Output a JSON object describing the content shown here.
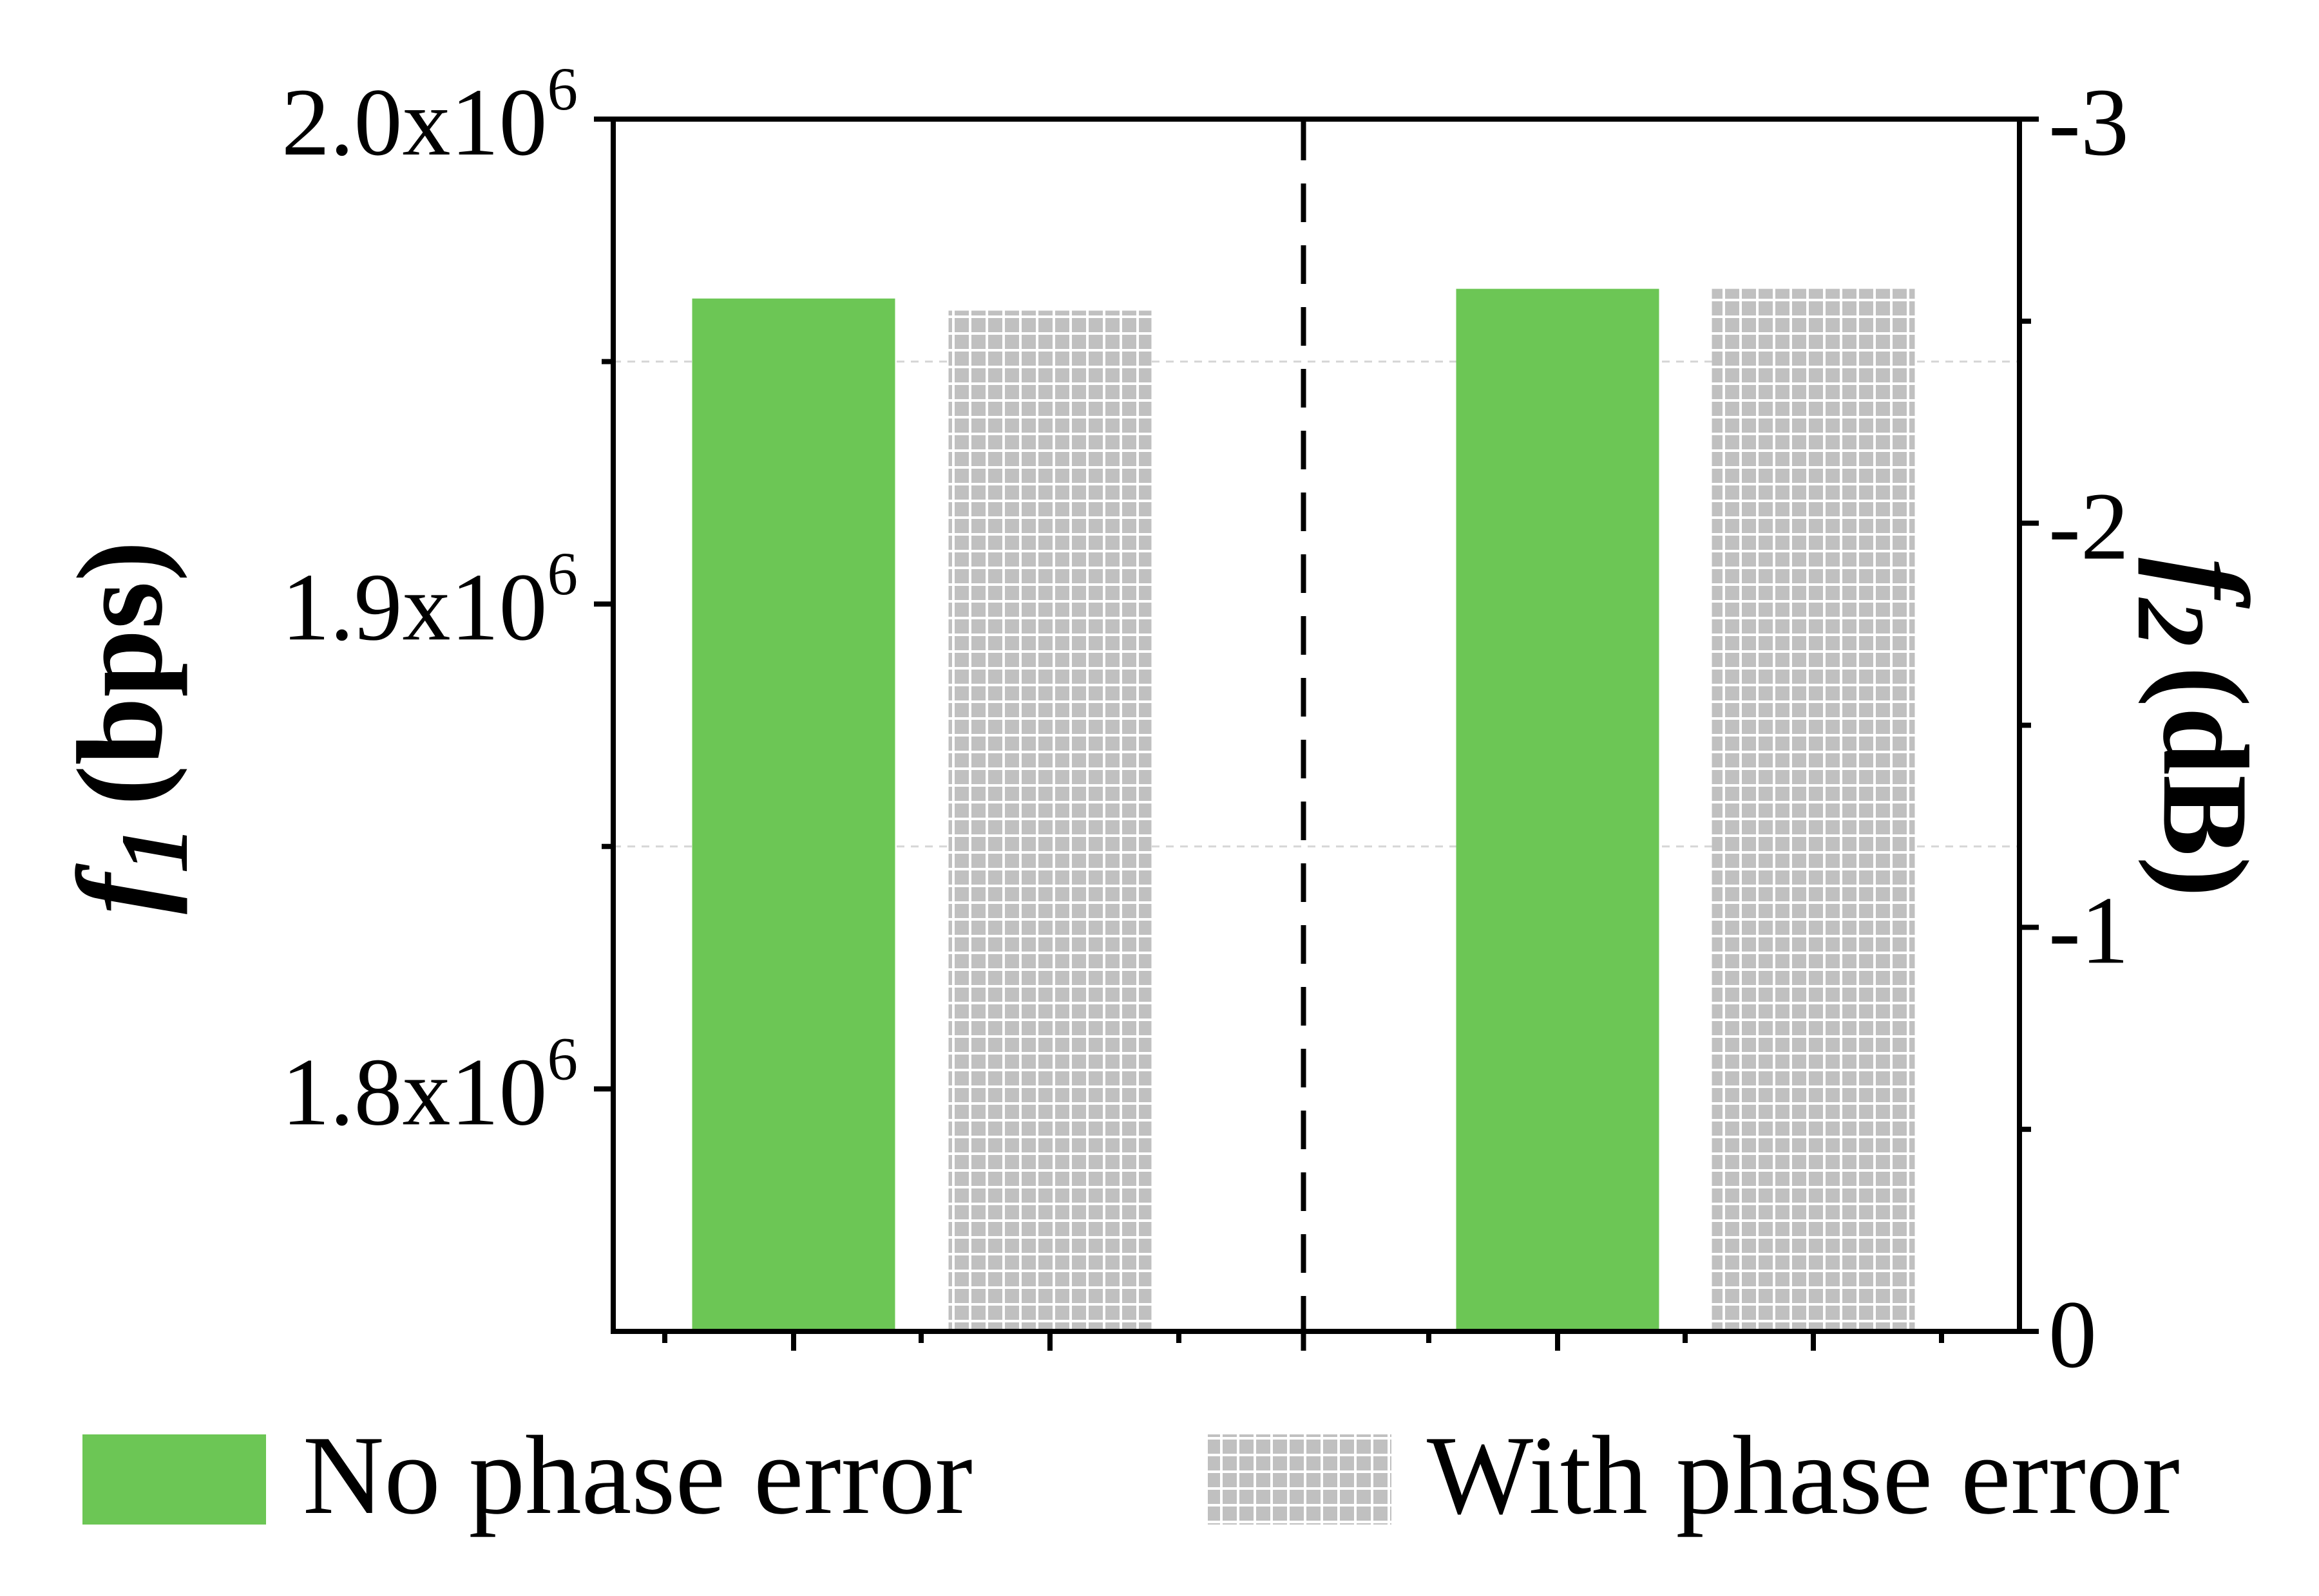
{
  "chart_data": {
    "type": "bar",
    "title": "",
    "left_axis": {
      "label_italic": "f",
      "label_sub": "1",
      "label_unit": "(bps)",
      "ylim": [
        1750000,
        2000000
      ],
      "ticks": [
        {
          "value": 1800000,
          "mantissa": "1.8x10",
          "exp": "6"
        },
        {
          "value": 1900000,
          "mantissa": "1.9x10",
          "exp": "6"
        },
        {
          "value": 2000000,
          "mantissa": "2.0x10",
          "exp": "6"
        }
      ],
      "gridlines": [
        1850000,
        1950000
      ]
    },
    "right_axis": {
      "label_italic": "f",
      "label_sub": "2",
      "label_unit": "(dB)",
      "ylim": [
        0,
        -3
      ],
      "ticks": [
        {
          "value": 0,
          "label": "0"
        },
        {
          "value": -1,
          "label": "-1"
        },
        {
          "value": -2,
          "label": "-2"
        },
        {
          "value": -3,
          "label": "-3"
        }
      ]
    },
    "series": [
      {
        "name": "No phase error",
        "color": "#6cc655",
        "pattern": "solid"
      },
      {
        "name": "With phase error",
        "color": "#c0c0c0",
        "pattern": "grid"
      }
    ],
    "groups": [
      {
        "axis": "left",
        "values": [
          1963000,
          1960500
        ]
      },
      {
        "axis": "right",
        "values": [
          -2.58,
          -2.58
        ]
      }
    ],
    "divider": "dashed-vertical",
    "legend": {
      "placement": "bottom"
    }
  }
}
